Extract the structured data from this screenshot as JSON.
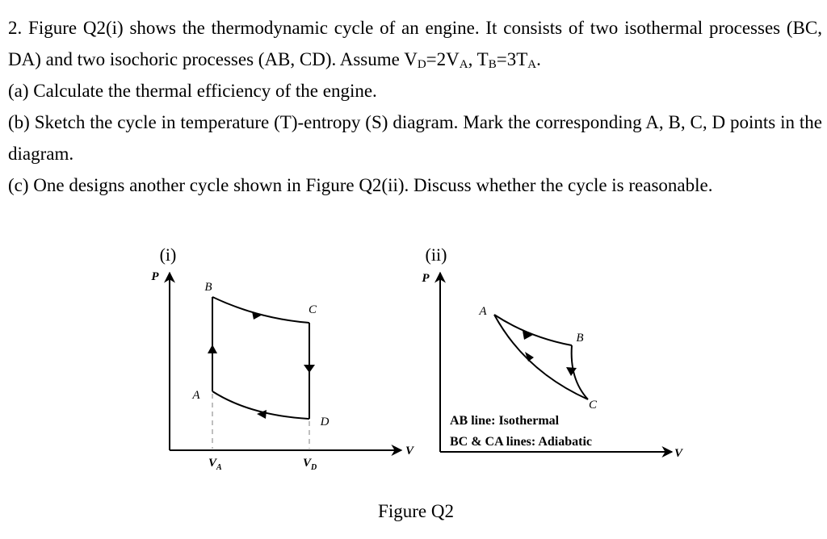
{
  "question": {
    "intro": "2. Figure Q2(i) shows the thermodynamic cycle of an engine. It consists of two isothermal processes (BC, DA) and two isochoric processes (AB, CD). Assume ",
    "assumption": [
      [
        "V",
        "D"
      ],
      [
        "=2V",
        "A"
      ],
      [
        ", T",
        "B"
      ],
      [
        "=3T",
        "A"
      ],
      [
        "."
      ]
    ],
    "parts": [
      "(a) Calculate the thermal efficiency of the engine.",
      "(b) Sketch the cycle in temperature (T)-entropy (S) diagram. Mark the corresponding A, B, C, D points in the diagram.",
      "(c) One designs another cycle shown in Figure Q2(ii). Discuss whether the cycle is reasonable."
    ]
  },
  "figure": {
    "panel_i": {
      "label": "(i)",
      "y_axis": "P",
      "x_axis": "V",
      "points": {
        "A": "A",
        "B": "B",
        "C": "C",
        "D": "D"
      },
      "ticks": [
        [
          "V",
          "A"
        ],
        [
          "V",
          "D"
        ]
      ]
    },
    "panel_ii": {
      "label": "(ii)",
      "y_axis": "P",
      "x_axis": "V",
      "points": {
        "A": "A",
        "B": "B",
        "C": "C"
      },
      "notes": [
        "AB line: Isothermal",
        "BC & CA lines: Adiabatic"
      ]
    },
    "caption": "Figure Q2"
  }
}
